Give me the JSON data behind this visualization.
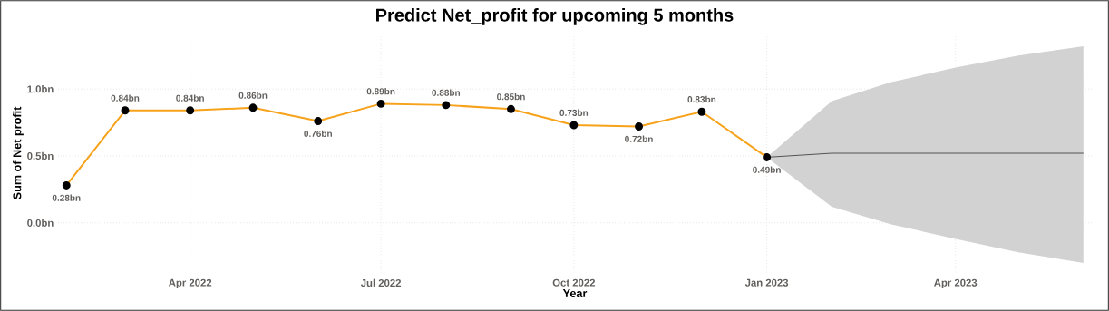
{
  "chart_data": {
    "type": "line",
    "title": "Predict Net_profit for upcoming 5 months",
    "xlabel": "Year",
    "ylabel": "Sum of Net profit",
    "xlim": [
      "2022-01-28",
      "2023-06-05"
    ],
    "xticks": [
      {
        "value": "2022-04-01",
        "label": "Apr 2022"
      },
      {
        "value": "2022-07-01",
        "label": "Jul 2022"
      },
      {
        "value": "2022-10-01",
        "label": "Oct 2022"
      },
      {
        "value": "2023-01-01",
        "label": "Jan 2023"
      },
      {
        "value": "2023-04-01",
        "label": "Apr 2023"
      }
    ],
    "ylim": [
      -0.37,
      1.41
    ],
    "yticks": [
      {
        "value": 0,
        "label": "0.0bn"
      },
      {
        "value": 0.5,
        "label": "0.5bn"
      },
      {
        "value": 1,
        "label": "1.0bn"
      }
    ],
    "grid": true,
    "series": [
      {
        "color": "#f7a21b",
        "marker": "circle",
        "x": [
          "2022-02",
          "2022-03",
          "2022-04",
          "2022-05",
          "2022-06",
          "2022-07",
          "2022-08",
          "2022-09",
          "2022-10",
          "2022-11",
          "2022-12",
          "2023-01"
        ],
        "values": [
          0.28,
          0.84,
          0.84,
          0.86,
          0.76,
          0.89,
          0.88,
          0.85,
          0.73,
          0.72,
          0.83,
          0.49
        ],
        "value_labels": [
          "0.28bn",
          "0.84bn",
          "0.84bn",
          "0.86bn",
          "0.76bn",
          "0.89bn",
          "0.88bn",
          "0.85bn",
          "0.73bn",
          "0.72bn",
          "0.83bn",
          "0.49bn"
        ]
      },
      {
        "color": "#333333",
        "marker": "none",
        "x": [
          "2023-01",
          "2023-02",
          "2023-03",
          "2023-04",
          "2023-05",
          "2023-06"
        ],
        "values": [
          0.49,
          0.52,
          0.52,
          0.52,
          0.52,
          0.52
        ],
        "lower": [
          0.49,
          0.12,
          -0.01,
          -0.12,
          -0.22,
          -0.3
        ],
        "upper": [
          0.49,
          0.91,
          1.05,
          1.16,
          1.25,
          1.32
        ]
      }
    ]
  }
}
